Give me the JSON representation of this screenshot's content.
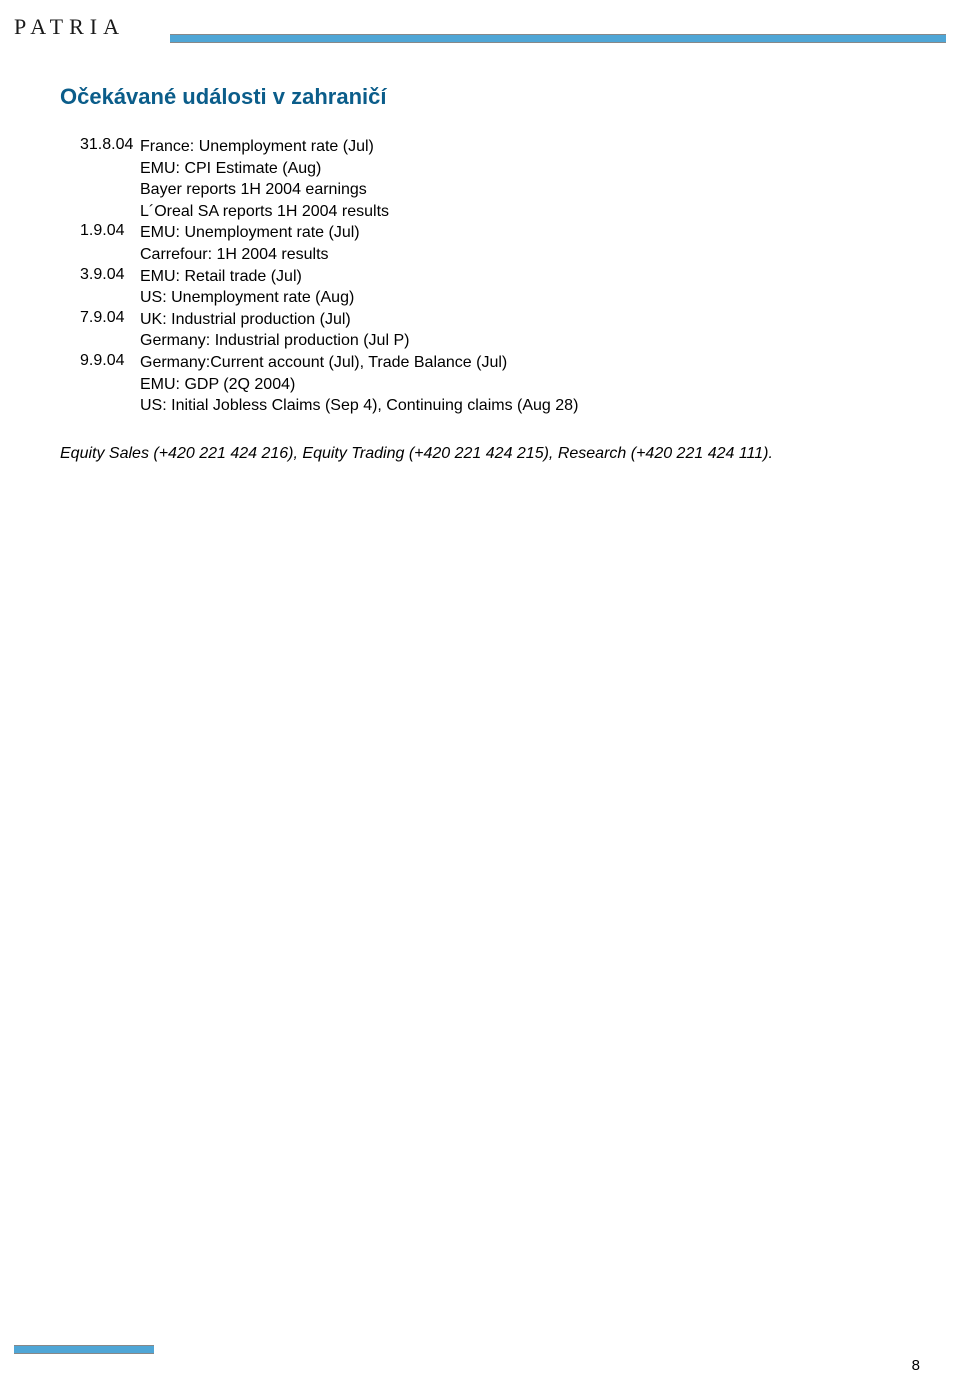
{
  "brand": {
    "logo_text": "PATRIA"
  },
  "title": "Očekávané události v zahraničí",
  "events": [
    {
      "date": "31.8.04",
      "items": [
        "France: Unemployment rate (Jul)",
        "EMU: CPI Estimate (Aug)",
        "Bayer reports 1H 2004 earnings",
        "L´Oreal SA reports 1H 2004 results"
      ]
    },
    {
      "date": "1.9.04",
      "items": [
        "EMU: Unemployment rate (Jul)",
        "Carrefour: 1H 2004 results"
      ]
    },
    {
      "date": "3.9.04",
      "items": [
        "EMU: Retail trade (Jul)",
        "US: Unemployment rate (Aug)"
      ]
    },
    {
      "date": "7.9.04",
      "items": [
        "UK: Industrial production (Jul)",
        "Germany: Industrial production (Jul P)"
      ]
    },
    {
      "date": "9.9.04",
      "items": [
        "Germany:Current account (Jul), Trade Balance (Jul)",
        "EMU: GDP (2Q 2004)",
        "US: Initial Jobless Claims (Sep 4), Continuing claims (Aug 28)"
      ]
    }
  ],
  "footer_contact": "Equity Sales (+420 221 424 216), Equity Trading (+420 221 424 215), Research (+420 221 424 111).",
  "page_number": "8",
  "colors": {
    "bar": "#4fa6d6",
    "title": "#0b5d8a",
    "text": "#000000",
    "background": "#ffffff"
  },
  "typography": {
    "logo_fontsize": 22,
    "title_fontsize": 22,
    "body_fontsize": 16,
    "pagenum_fontsize": 15
  }
}
